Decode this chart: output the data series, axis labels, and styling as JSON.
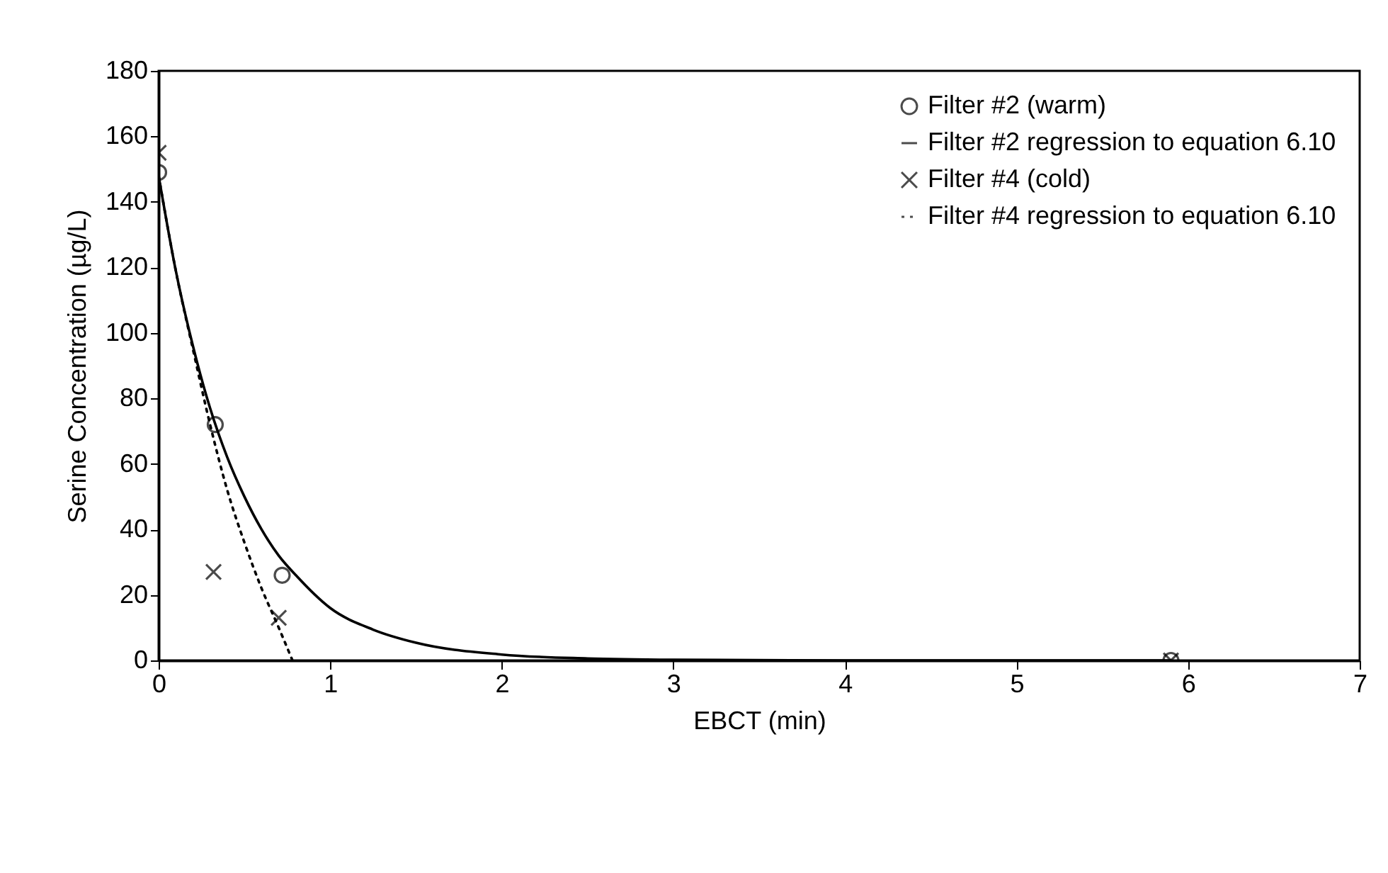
{
  "chart_data": {
    "type": "scatter",
    "xlabel": "EBCT (min)",
    "ylabel": "Serine Concentration (µg/L)",
    "xlim": [
      0,
      7
    ],
    "xticks": [
      0,
      1,
      2,
      3,
      4,
      5,
      6,
      7
    ],
    "ylim": [
      0,
      180
    ],
    "yticks": [
      0,
      20,
      40,
      60,
      80,
      100,
      120,
      140,
      160,
      180
    ],
    "grid": false,
    "legend": "top right",
    "series": [
      {
        "name": "Filter #2 (warm)",
        "type": "scatter",
        "marker": "circle",
        "color": "#000000",
        "x": [
          0,
          0.33,
          0.72,
          5.9
        ],
        "values": [
          149,
          72,
          26,
          0
        ]
      },
      {
        "name": "Filter #2 regression to equation 6.10",
        "type": "line",
        "marker": "none",
        "line_style": "solid",
        "color": "#000000",
        "x": [
          0,
          0.1,
          0.2,
          0.3,
          0.4,
          0.5,
          0.6,
          0.7,
          0.8,
          1,
          1.25,
          1.5,
          2,
          2.5,
          3,
          4,
          5.9
        ],
        "values": [
          148,
          119,
          96,
          77,
          62,
          50,
          40,
          32,
          26,
          16,
          9.4,
          5.4,
          1.8,
          0.6,
          0.2,
          0,
          0
        ]
      },
      {
        "name": "Filter #4 (cold)",
        "type": "scatter",
        "marker": "cross",
        "color": "#000000",
        "x": [
          0,
          0.32,
          0.7,
          5.9
        ],
        "values": [
          155,
          27,
          13,
          0
        ]
      },
      {
        "name": "Filter #4 regression to equation 6.10",
        "type": "line",
        "marker": "none",
        "line_style": "dotted",
        "color": "#000000",
        "x": [
          0,
          0.1,
          0.2,
          0.3,
          0.4,
          0.5,
          0.6,
          0.7,
          0.78
        ],
        "values": [
          148,
          119,
          95,
          72,
          52,
          36,
          22,
          10,
          0
        ]
      }
    ]
  }
}
